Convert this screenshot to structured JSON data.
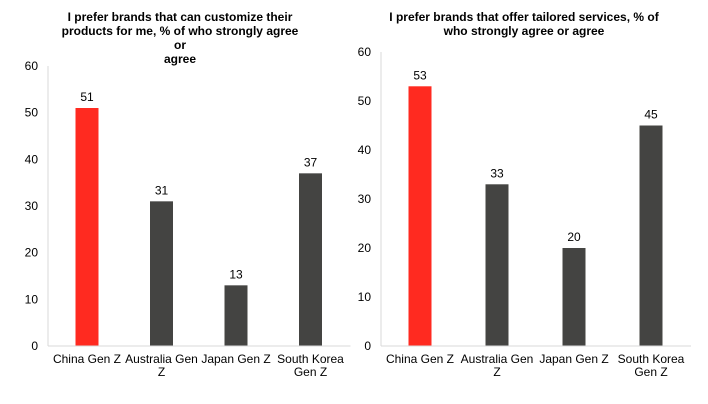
{
  "chart_data": [
    {
      "type": "bar",
      "title": "I prefer brands that can customize their\nproducts for me, % of who strongly agree or\nagree",
      "categories": [
        "China Gen Z",
        "Australia Gen Z",
        "Japan Gen Z",
        "South Korea Gen Z"
      ],
      "category_lines": [
        [
          "China Gen Z"
        ],
        [
          "Australia Gen",
          "Z"
        ],
        [
          "Japan Gen Z"
        ],
        [
          "South Korea",
          "Gen Z"
        ]
      ],
      "values": [
        51,
        31,
        13,
        37
      ],
      "bar_colors": [
        "#ff2a20",
        "#444442",
        "#444442",
        "#444442"
      ],
      "ylim": [
        0,
        60
      ],
      "yticks": [
        0,
        10,
        20,
        30,
        40,
        50,
        60
      ],
      "grid": false,
      "data_labels": true
    },
    {
      "type": "bar",
      "title": "I prefer brands that offer tailored services, % of\nwho strongly agree or agree",
      "categories": [
        "China Gen Z",
        "Australia Gen Z",
        "Japan Gen Z",
        "South Korea Gen Z"
      ],
      "category_lines": [
        [
          "China Gen Z"
        ],
        [
          "Australia Gen",
          "Z"
        ],
        [
          "Japan Gen Z"
        ],
        [
          "South Korea",
          "Gen Z"
        ]
      ],
      "values": [
        53,
        33,
        20,
        45
      ],
      "bar_colors": [
        "#ff2a20",
        "#444442",
        "#444442",
        "#444442"
      ],
      "ylim": [
        0,
        60
      ],
      "yticks": [
        0,
        10,
        20,
        30,
        40,
        50,
        60
      ],
      "grid": false,
      "data_labels": true
    }
  ]
}
